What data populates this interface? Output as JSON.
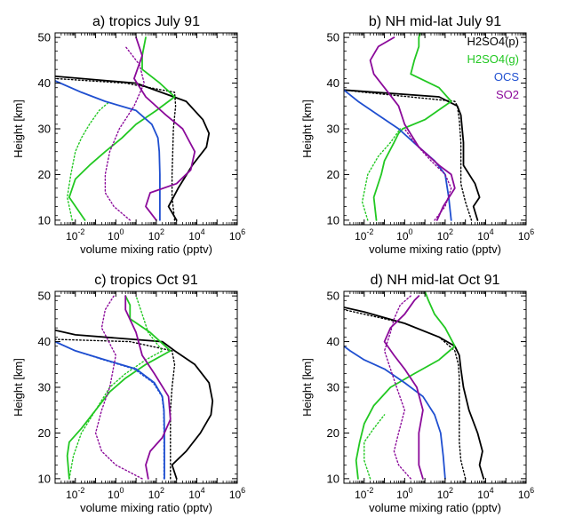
{
  "chart_data": [
    {
      "type": "line",
      "title": "a) tropics July 91",
      "xlabel": "volume mixing ratio (pptv)",
      "ylabel": "Height [km]",
      "xscale": "log",
      "xlim": [
        0.001,
        1000000
      ],
      "ylim": [
        9,
        51
      ],
      "xticks": [
        "10-2",
        "100",
        "102",
        "104",
        "106"
      ],
      "yticks": [
        10,
        20,
        30,
        40,
        50
      ],
      "series": [
        {
          "species": "H2SO4(p)",
          "style": "solid",
          "color": "#000000",
          "x": [
            1000,
            400,
            1200,
            6000,
            30000,
            40000,
            20000,
            3000,
            10,
            0.001
          ],
          "y": [
            10,
            13,
            17,
            22,
            26,
            29,
            32,
            36,
            40,
            41.5
          ]
        },
        {
          "species": "H2SO4(p)",
          "style": "dotted",
          "color": "#000000",
          "x": [
            800,
            600,
            600,
            650,
            700,
            900,
            800,
            3,
            0.001
          ],
          "y": [
            10,
            15,
            20,
            25,
            30,
            35,
            38,
            40,
            41
          ]
        },
        {
          "species": "H2SO4(g)",
          "style": "solid",
          "color": "#22c822",
          "x": [
            0.03,
            0.005,
            0.01,
            0.05,
            0.3,
            2,
            10,
            100,
            800,
            150,
            20,
            20,
            30
          ],
          "y": [
            10,
            15,
            19,
            22,
            25,
            28,
            31,
            34,
            37,
            40,
            43,
            46,
            50
          ]
        },
        {
          "species": "H2SO4(g)",
          "style": "dotted",
          "color": "#22c822",
          "x": [
            0.007,
            0.004,
            0.006,
            0.01,
            0.02,
            0.05,
            0.15,
            0.5
          ],
          "y": [
            10,
            15,
            20,
            25,
            28,
            31,
            34,
            36
          ]
        },
        {
          "species": "OCS",
          "style": "solid",
          "color": "#1f4fd0",
          "x": [
            150,
            150,
            150,
            140,
            120,
            60,
            10,
            0.3,
            0.02,
            0.001
          ],
          "y": [
            10,
            15,
            20,
            25,
            28,
            31,
            34,
            36,
            38,
            40.5
          ]
        },
        {
          "species": "SO2",
          "style": "solid",
          "color": "#8b0a9a",
          "x": [
            100,
            30,
            50,
            1000,
            5000,
            8000,
            2000,
            300,
            30,
            8,
            20,
            10
          ],
          "y": [
            10,
            13,
            16,
            18,
            21,
            25,
            30,
            33,
            37,
            41,
            46,
            50
          ]
        },
        {
          "species": "SO2",
          "style": "dotted",
          "color": "#8b0a9a",
          "x": [
            5,
            0.8,
            0.3,
            0.3,
            0.5,
            1.5,
            8,
            25,
            15,
            3
          ],
          "y": [
            10,
            13,
            16,
            20,
            25,
            30,
            35,
            40,
            44,
            48
          ]
        }
      ]
    },
    {
      "type": "line",
      "title": "b) NH mid-lat July 91",
      "xlabel": "volume mixing ratio (pptv)",
      "ylabel": "Height [km]",
      "xscale": "log",
      "xlim": [
        0.001,
        1000000
      ],
      "ylim": [
        9,
        51
      ],
      "xticks": [
        "10-2",
        "100",
        "102",
        "104",
        "106"
      ],
      "yticks": [
        10,
        20,
        30,
        40,
        50
      ],
      "legend": [
        "H2SO4(p)",
        "H2SO4(g)",
        "OCS",
        "SO2"
      ],
      "legend_position": "top-right",
      "series": [
        {
          "name": "H2SO4(p)",
          "style": "solid",
          "color": "#000000",
          "x": [
            4000,
            2500,
            5000,
            3000,
            800,
            800,
            600,
            400,
            50,
            0.001
          ],
          "y": [
            10,
            13,
            15,
            18,
            22,
            27,
            33,
            35,
            37,
            38.5
          ]
        },
        {
          "name": "H2SO4(p)",
          "style": "dotted",
          "color": "#000000",
          "x": [
            2000,
            1000,
            600,
            600,
            600,
            500,
            400,
            300,
            0.01,
            0.001
          ],
          "y": [
            10,
            14,
            18,
            22,
            27,
            32,
            35,
            36,
            38,
            38.5
          ]
        },
        {
          "name": "H2SO4(g)",
          "style": "solid",
          "color": "#22c822",
          "x": [
            0.04,
            0.03,
            0.07,
            0.1,
            0.3,
            0.5,
            0.8,
            10,
            200,
            50,
            2,
            3,
            5,
            5,
            6
          ],
          "y": [
            10,
            15,
            20,
            23,
            27,
            29,
            30,
            32,
            36,
            39,
            42,
            45,
            48,
            50,
            51
          ]
        },
        {
          "name": "H2SO4(g)",
          "style": "dotted",
          "color": "#22c822",
          "x": [
            0.015,
            0.008,
            0.015,
            0.05,
            0.2,
            0.6
          ],
          "y": [
            10,
            14,
            20,
            24,
            27,
            30
          ]
        },
        {
          "name": "OCS",
          "style": "solid",
          "color": "#1f4fd0",
          "x": [
            200,
            150,
            100,
            30,
            5,
            0.5,
            0.05,
            0.005,
            0.001
          ],
          "y": [
            10,
            15,
            20,
            23,
            26,
            30,
            33,
            36,
            38.5
          ]
        },
        {
          "name": "SO2",
          "style": "solid",
          "color": "#8b0a9a",
          "x": [
            40,
            80,
            300,
            200,
            50,
            5,
            1,
            0.5,
            0.1,
            0.03,
            0.02,
            0.05,
            0.3
          ],
          "y": [
            10,
            13,
            17,
            20,
            22,
            26,
            31,
            35,
            39,
            42,
            45,
            48,
            50
          ]
        },
        {
          "name": "SO2",
          "style": "dotted",
          "color": "#8b0a9a",
          "x": [
            30,
            100,
            200,
            100,
            20,
            3,
            1
          ],
          "y": [
            10,
            13,
            17,
            20,
            23,
            27,
            30
          ]
        }
      ]
    },
    {
      "type": "line",
      "title": "c) tropics Oct 91",
      "xlabel": "volume mixing ratio (pptv)",
      "ylabel": "Height [km]",
      "xscale": "log",
      "xlim": [
        0.001,
        1000000
      ],
      "ylim": [
        9,
        51
      ],
      "xticks": [
        "10-2",
        "100",
        "102",
        "104",
        "106"
      ],
      "yticks": [
        10,
        20,
        30,
        40,
        50
      ],
      "series": [
        {
          "species": "H2SO4(p)",
          "style": "solid",
          "color": "#000000",
          "x": [
            1000,
            600,
            3000,
            15000,
            50000,
            60000,
            40000,
            8000,
            800,
            200,
            0.01,
            0.001
          ],
          "y": [
            10,
            13,
            16,
            20,
            24,
            27,
            31,
            35,
            38,
            40,
            41.5,
            42.5
          ]
        },
        {
          "species": "H2SO4(p)",
          "style": "dotted",
          "color": "#000000",
          "x": [
            500,
            500,
            500,
            500,
            600,
            800,
            600,
            5,
            0.001
          ],
          "y": [
            10,
            15,
            20,
            25,
            30,
            35,
            38,
            40,
            40.5
          ]
        },
        {
          "species": "H2SO4(g)",
          "style": "solid",
          "color": "#22c822",
          "x": [
            0.005,
            0.004,
            0.005,
            0.02,
            0.1,
            0.5,
            3,
            30,
            500,
            50,
            5,
            5,
            3
          ],
          "y": [
            10,
            15,
            18,
            21,
            25,
            29,
            32,
            35,
            38,
            42,
            45,
            48,
            50
          ]
        },
        {
          "species": "H2SO4(g)",
          "style": "dotted",
          "color": "#22c822",
          "x": [
            0.005,
            0.008,
            0.02,
            0.1,
            0.5,
            3,
            30,
            200,
            40,
            20,
            10
          ],
          "y": [
            10,
            15,
            20,
            25,
            30,
            33,
            36,
            38,
            42,
            46,
            50
          ]
        },
        {
          "species": "OCS",
          "style": "solid",
          "color": "#1f4fd0",
          "x": [
            250,
            250,
            250,
            240,
            200,
            80,
            10,
            0.3,
            0.01,
            0.001
          ],
          "y": [
            10,
            15,
            20,
            25,
            28,
            31,
            34,
            36,
            38,
            40
          ]
        },
        {
          "species": "OCS",
          "style": "dotted",
          "color": "#1f4fd0",
          "x": [
            240,
            240,
            240,
            230,
            190,
            70,
            8,
            0.25,
            0.01,
            0.001
          ],
          "y": [
            10,
            15,
            20,
            25,
            28,
            31,
            34,
            36,
            38,
            40
          ]
        },
        {
          "species": "SO2",
          "style": "solid",
          "color": "#8b0a9a",
          "x": [
            40,
            30,
            50,
            200,
            500,
            400,
            80,
            20,
            10,
            3,
            3
          ],
          "y": [
            10,
            13,
            16,
            19,
            23,
            28,
            33,
            37,
            42,
            47,
            50
          ]
        },
        {
          "species": "SO2",
          "style": "dotted",
          "color": "#8b0a9a",
          "x": [
            20,
            1,
            0.2,
            0.1,
            0.2,
            0.5,
            1,
            0.2,
            0.3,
            0.8
          ],
          "y": [
            10,
            13,
            16,
            20,
            25,
            30,
            37,
            43,
            47,
            50
          ]
        }
      ]
    },
    {
      "type": "line",
      "title": "d) NH mid-lat Oct 91",
      "xlabel": "volume mixing ratio (pptv)",
      "ylabel": "Height [km]",
      "xscale": "log",
      "xlim": [
        0.001,
        1000000
      ],
      "ylim": [
        9,
        51
      ],
      "xticks": [
        "10-2",
        "100",
        "102",
        "104",
        "106"
      ],
      "yticks": [
        10,
        20,
        30,
        40,
        50
      ],
      "series": [
        {
          "species": "H2SO4(p)",
          "style": "solid",
          "color": "#000000",
          "x": [
            8000,
            5000,
            7000,
            4000,
            1500,
            800,
            600,
            500,
            300,
            50,
            1,
            0.01,
            0.001
          ],
          "y": [
            10,
            13,
            16,
            20,
            25,
            30,
            34,
            37,
            39,
            41,
            44,
            46.5,
            47.5
          ]
        },
        {
          "species": "H2SO4(p)",
          "style": "dotted",
          "color": "#000000",
          "x": [
            1000,
            600,
            500,
            500,
            500,
            500,
            450,
            300,
            50,
            1,
            0.01,
            0.001
          ],
          "y": [
            10,
            14,
            18,
            22,
            27,
            32,
            35,
            38,
            41,
            44,
            46,
            47
          ]
        },
        {
          "species": "H2SO4(g)",
          "style": "solid",
          "color": "#22c822",
          "x": [
            0.005,
            0.004,
            0.006,
            0.01,
            0.03,
            0.2,
            3,
            50,
            300,
            100,
            30,
            15,
            10
          ],
          "y": [
            10,
            14,
            18,
            22,
            26,
            30,
            33,
            36,
            39,
            43,
            46,
            49,
            51
          ]
        },
        {
          "species": "H2SO4(g)",
          "style": "dotted",
          "color": "#22c822",
          "x": [
            0.02,
            0.01,
            0.01,
            0.03,
            0.1
          ],
          "y": [
            10,
            14,
            18,
            21,
            24
          ]
        },
        {
          "species": "OCS",
          "style": "solid",
          "color": "#1f4fd0",
          "x": [
            100,
            80,
            60,
            30,
            8,
            1,
            0.1,
            0.01,
            0.002,
            0.001
          ],
          "y": [
            10,
            15,
            20,
            24,
            28,
            31,
            34,
            36,
            38,
            39
          ]
        },
        {
          "species": "SO2",
          "style": "solid",
          "color": "#8b0a9a",
          "x": [
            8,
            5,
            5,
            5,
            8,
            4,
            1,
            0.3,
            0.1,
            0.2,
            1,
            3,
            5
          ],
          "y": [
            10,
            13,
            16,
            20,
            25,
            30,
            34,
            37,
            40,
            43,
            46,
            49,
            50
          ]
        },
        {
          "species": "SO2",
          "style": "dotted",
          "color": "#8b0a9a",
          "x": [
            2,
            0.5,
            0.3,
            0.5,
            1,
            0.4,
            0.2,
            0.1,
            0.2,
            0.3,
            0.6,
            2
          ],
          "y": [
            10,
            13,
            16,
            20,
            25,
            30,
            34,
            38,
            42,
            45,
            48,
            50
          ]
        }
      ]
    }
  ]
}
